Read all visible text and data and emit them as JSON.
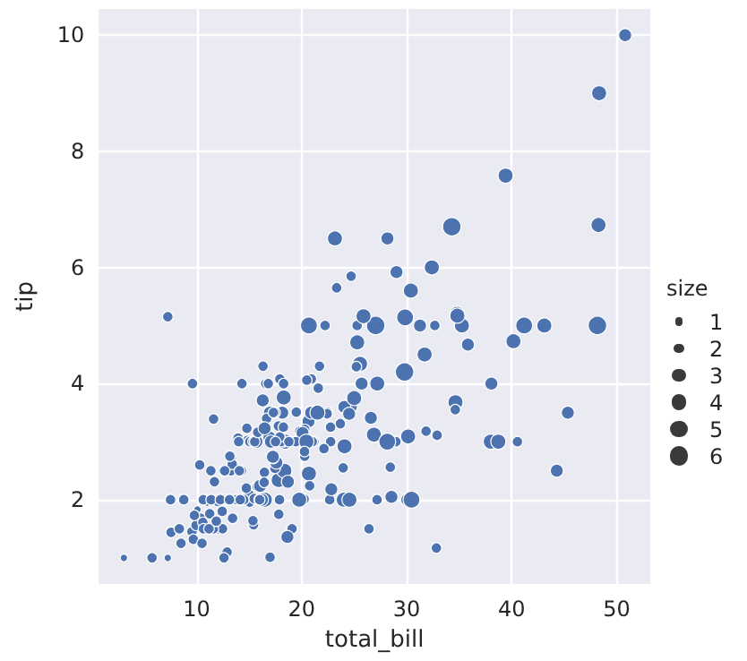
{
  "chart_data": {
    "type": "bubble",
    "xlabel": "total_bill",
    "ylabel": "tip",
    "legend_title": "size",
    "grid": true,
    "marker": "circle",
    "color": "#4c72b0",
    "xlim": [
      0.68,
      53.2
    ],
    "xticks": [
      10,
      20,
      30,
      40,
      50
    ],
    "ylim": [
      0.55,
      10.45
    ],
    "yticks": [
      2,
      4,
      6,
      8,
      10
    ],
    "size_legend": [
      1,
      2,
      3,
      4,
      5,
      6
    ],
    "x": [
      16.99,
      10.34,
      23.68,
      24.59,
      25.29,
      8.77,
      26.88,
      15.04,
      14.78,
      35.26,
      15.42,
      18.43,
      14.83,
      21.58,
      16.29,
      16.97,
      20.65,
      17.92,
      20.29,
      15.77,
      39.42,
      19.82,
      17.81,
      12.69,
      21.7,
      9.55,
      18.35,
      15.06,
      20.69,
      17.78,
      24.06,
      16.93,
      18.69,
      31.27,
      16.04,
      17.46,
      13.94,
      9.68,
      30.4,
      18.29,
      22.23,
      32.4,
      28.55,
      18.04,
      12.54,
      10.29,
      34.81,
      9.94,
      25.56,
      19.49,
      38.01,
      26.41,
      11.24,
      48.27,
      20.29,
      13.81,
      11.02,
      18.29,
      17.59,
      20.08,
      16.45,
      3.07,
      20.23,
      15.01,
      12.02,
      17.07,
      25.28,
      14.73,
      10.51,
      17.92,
      27.2,
      22.76,
      17.29,
      19.44,
      16.66,
      10.07,
      32.68,
      34.83,
      13.03,
      18.28,
      24.71,
      21.16,
      28.97,
      22.49,
      5.75,
      16.32,
      22.75,
      40.17,
      12.03,
      21.01,
      12.46,
      11.35,
      15.38,
      44.3,
      22.42,
      20.92,
      15.36,
      20.49,
      25.21,
      14.31,
      14.0,
      7.25,
      50.81,
      48.33,
      7.25,
      48.17,
      43.11,
      41.19,
      45.35,
      40.55,
      29.03,
      27.18,
      22.67,
      17.82,
      18.78,
      34.3,
      27.05,
      29.8,
      32.83,
      35.83,
      31.85,
      34.65,
      30.14,
      32.9,
      38.07,
      38.73,
      31.71,
      23.33,
      25.89,
      26.59,
      28.44,
      15.48,
      16.58,
      7.56,
      28.15,
      11.59,
      30.06,
      13.27,
      28.17,
      12.9,
      20.45,
      13.28,
      22.12,
      24.01,
      15.69,
      11.61,
      15.53,
      12.6,
      20.69,
      20.9,
      30.46,
      18.15,
      23.17,
      24.52,
      20.76,
      10.59,
      10.63,
      15.81,
      16.82,
      17.89,
      14.48,
      9.6,
      34.63,
      25.0,
      13.39,
      16.49,
      21.5,
      12.66,
      16.21,
      17.51,
      10.65,
      12.43,
      24.08,
      11.69,
      13.42,
      14.26,
      15.95,
      11.38,
      22.82,
      19.08,
      20.27,
      11.17,
      12.26,
      18.26,
      8.51,
      14.15,
      16.0,
      13.16,
      17.47,
      16.43,
      8.35,
      18.64,
      11.87,
      9.78,
      7.51,
      14.07,
      13.13,
      17.26,
      24.55,
      19.77,
      29.85,
      23.95,
      25.71,
      17.31,
      16.47
    ],
    "values": [
      1.01,
      1.66,
      3.31,
      3.61,
      4.71,
      2.0,
      3.12,
      1.96,
      3.23,
      5.0,
      1.57,
      3.0,
      3.02,
      3.92,
      3.71,
      3.5,
      3.35,
      4.08,
      2.75,
      2.23,
      7.58,
      3.18,
      2.34,
      2.0,
      4.3,
      1.45,
      2.5,
      3.0,
      2.45,
      3.27,
      3.6,
      3.07,
      2.31,
      5.0,
      2.24,
      2.54,
      3.06,
      1.32,
      5.6,
      3.0,
      5.0,
      6.0,
      2.05,
      3.0,
      2.5,
      2.6,
      5.2,
      1.56,
      4.34,
      3.51,
      3.0,
      1.5,
      1.76,
      6.73,
      3.21,
      2.0,
      1.98,
      3.76,
      2.64,
      3.15,
      2.47,
      1.0,
      2.01,
      2.09,
      1.97,
      3.0,
      5.0,
      2.2,
      1.25,
      3.08,
      4.0,
      3.0,
      2.71,
      3.0,
      3.4,
      1.83,
      5.0,
      5.17,
      2.0,
      4.0,
      5.85,
      3.0,
      3.0,
      3.5,
      1.0,
      4.3,
      3.25,
      4.73,
      1.5,
      3.0,
      1.5,
      2.5,
      3.0,
      2.5,
      3.48,
      4.08,
      1.64,
      4.06,
      4.29,
      4.0,
      3.0,
      1.0,
      10.0,
      9.0,
      5.15,
      5.0,
      5.0,
      5.0,
      3.5,
      3.0,
      5.92,
      2.0,
      2.0,
      1.75,
      3.0,
      6.7,
      5.0,
      4.2,
      1.17,
      4.67,
      3.18,
      3.68,
      3.09,
      3.11,
      4.0,
      3.0,
      4.5,
      5.65,
      5.16,
      3.41,
      2.56,
      2.02,
      4.0,
      1.44,
      3.0,
      1.5,
      2.0,
      2.5,
      6.5,
      1.1,
      3.0,
      2.72,
      2.88,
      2.0,
      3.0,
      3.39,
      3.0,
      1.0,
      5.0,
      3.5,
      2.0,
      3.5,
      6.5,
      3.48,
      2.24,
      1.61,
      2.0,
      3.16,
      4.0,
      2.0,
      2.0,
      4.0,
      3.55,
      3.75,
      2.61,
      2.0,
      3.5,
      2.5,
      2.0,
      3.0,
      1.5,
      1.8,
      2.92,
      2.31,
      1.68,
      2.5,
      2.0,
      2.0,
      2.18,
      1.5,
      2.83,
      1.5,
      2.0,
      3.25,
      1.25,
      2.0,
      2.0,
      2.75,
      3.5,
      2.3,
      1.5,
      1.36,
      1.63,
      1.73,
      2.0,
      2.5,
      2.0,
      2.74,
      2.0,
      2.0,
      5.14,
      2.55,
      4.0,
      3.5,
      3.23
    ],
    "sizes": [
      2,
      3,
      2,
      4,
      4,
      2,
      4,
      2,
      2,
      4,
      2,
      4,
      2,
      2,
      3,
      3,
      3,
      2,
      2,
      2,
      4,
      2,
      4,
      2,
      2,
      2,
      4,
      2,
      4,
      2,
      3,
      3,
      3,
      3,
      3,
      2,
      2,
      2,
      4,
      2,
      2,
      4,
      3,
      2,
      2,
      2,
      4,
      2,
      4,
      2,
      4,
      2,
      2,
      4,
      2,
      2,
      2,
      4,
      3,
      3,
      2,
      1,
      2,
      2,
      2,
      3,
      2,
      2,
      2,
      2,
      4,
      2,
      2,
      2,
      2,
      1,
      2,
      4,
      2,
      2,
      2,
      2,
      2,
      2,
      2,
      2,
      2,
      4,
      2,
      2,
      2,
      2,
      2,
      3,
      2,
      2,
      2,
      2,
      2,
      2,
      2,
      1,
      3,
      4,
      2,
      6,
      4,
      5,
      3,
      2,
      3,
      2,
      2,
      2,
      2,
      6,
      6,
      6,
      2,
      3,
      2,
      4,
      4,
      2,
      3,
      4,
      4,
      2,
      4,
      3,
      2,
      2,
      2,
      2,
      5,
      2,
      3,
      2,
      3,
      2,
      4,
      2,
      2,
      4,
      3,
      2,
      2,
      2,
      5,
      3,
      5,
      3,
      4,
      3,
      2,
      2,
      2,
      2,
      2,
      2,
      2,
      2,
      2,
      4,
      2,
      4,
      4,
      2,
      3,
      2,
      2,
      2,
      4,
      2,
      2,
      2,
      2,
      2,
      3,
      2,
      2,
      2,
      2,
      2,
      2,
      2,
      2,
      2,
      2,
      2,
      2,
      3,
      2,
      2,
      2,
      2,
      2,
      3,
      4,
      4,
      5,
      2,
      3,
      2,
      3
    ]
  }
}
